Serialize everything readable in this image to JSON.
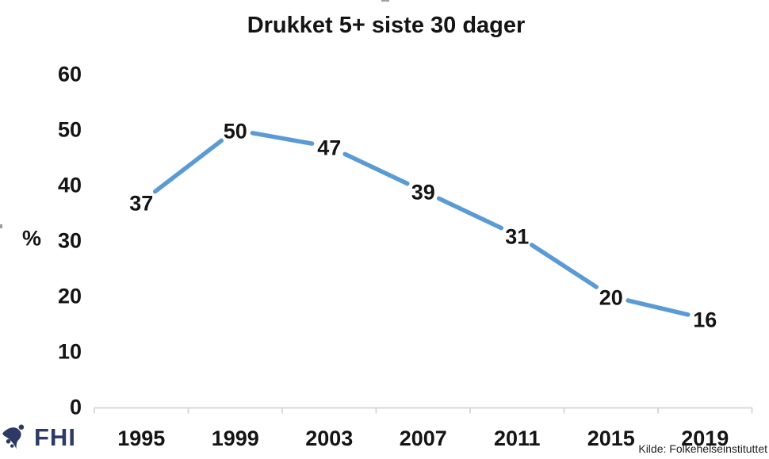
{
  "chart_data": {
    "type": "line",
    "title": "Drukket 5+ siste 30 dager",
    "categories": [
      "1995",
      "1999",
      "2003",
      "2007",
      "2011",
      "2015",
      "2019"
    ],
    "values": [
      37,
      50,
      47,
      39,
      31,
      20,
      16
    ],
    "xlabel": "",
    "ylabel": "%",
    "y_ticks": [
      0,
      10,
      20,
      30,
      40,
      50,
      60
    ],
    "ylim": [
      0,
      60
    ],
    "grid": false,
    "legend_position": "none",
    "line_color": "#5B9BD5",
    "axis_color": "#D9D9D9",
    "label_color": "#141414"
  },
  "footer": {
    "logo_text": "FHI",
    "source": "Kilde: Folkehelseinstituttet"
  },
  "colors": {
    "accent_blue": "#5B9BD5",
    "logo_navy": "#2d3a66",
    "axis_gray": "#D9D9D9",
    "text_black": "#141414"
  }
}
